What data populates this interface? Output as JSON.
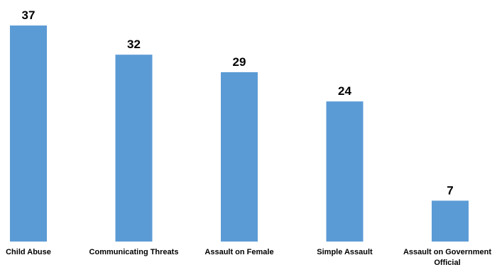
{
  "chart_data": {
    "type": "bar",
    "categories": [
      "Child Abuse",
      "Communicating Threats",
      "Assault on Female",
      "Simple Assault",
      "Assault on Government Official"
    ],
    "values": [
      37,
      32,
      29,
      24,
      7
    ],
    "title": "",
    "xlabel": "",
    "ylabel": "",
    "ylim": [
      0,
      37
    ],
    "grid": false,
    "legend": "none",
    "data_labels": true,
    "bar_color": "#5B9BD5"
  }
}
